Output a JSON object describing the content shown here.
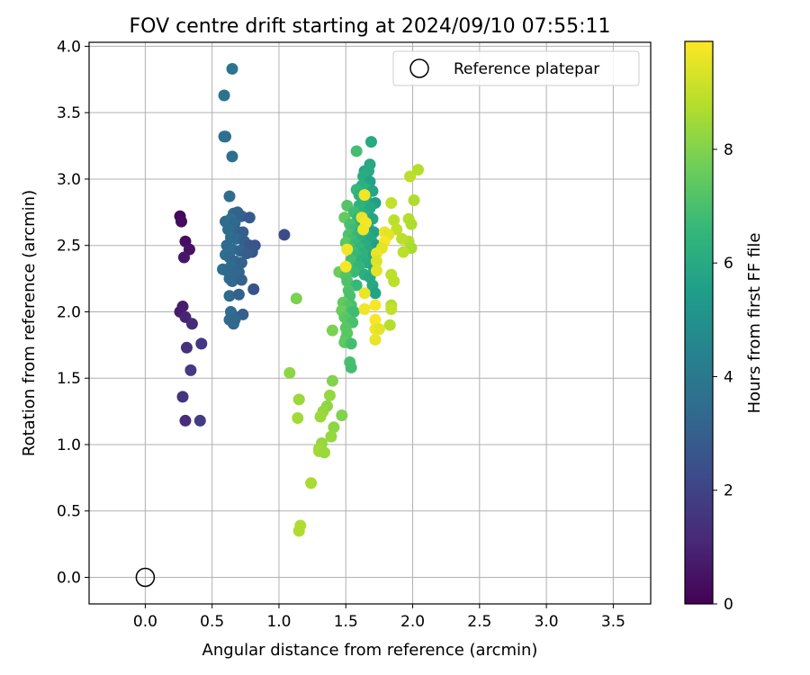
{
  "chart_data": {
    "type": "scatter",
    "title": "FOV centre drift starting at 2024/09/10 07:55:11",
    "xlabel": "Angular distance from reference (arcmin)",
    "ylabel": "Rotation from reference (arcmin)",
    "xlim": [
      -0.42,
      3.78
    ],
    "ylim": [
      -0.2,
      4.03
    ],
    "xticks": [
      0.0,
      0.5,
      1.0,
      1.5,
      2.0,
      2.5,
      3.0,
      3.5
    ],
    "yticks": [
      0.0,
      0.5,
      1.0,
      1.5,
      2.0,
      2.5,
      3.0,
      3.5,
      4.0
    ],
    "xtick_labels": [
      "0.0",
      "0.5",
      "1.0",
      "1.5",
      "2.0",
      "2.5",
      "3.0",
      "3.5"
    ],
    "ytick_labels": [
      "0.0",
      "0.5",
      "1.0",
      "1.5",
      "2.0",
      "2.5",
      "3.0",
      "3.5",
      "4.0"
    ],
    "grid": true,
    "legend": {
      "position": "upper right",
      "entries": [
        {
          "label": "Reference platepar",
          "marker": "open-circle",
          "color": "#000000"
        }
      ]
    },
    "reference_point": {
      "x": 0.0,
      "y": 0.0
    },
    "colorbar": {
      "label": "Hours from first FF file",
      "range": [
        0,
        9.9
      ],
      "ticks": [
        0,
        2,
        4,
        6,
        8
      ],
      "tick_labels": [
        "0",
        "2",
        "4",
        "6",
        "8"
      ],
      "colormap": [
        "#440154",
        "#482878",
        "#3e4989",
        "#31688e",
        "#26828e",
        "#1f9e89",
        "#35b779",
        "#6ece58",
        "#b5de2b",
        "#fde725"
      ]
    },
    "points": [
      {
        "x": 0.26,
        "y": 2.72,
        "c": 0.2
      },
      {
        "x": 0.27,
        "y": 2.68,
        "c": 0.3
      },
      {
        "x": 0.3,
        "y": 2.53,
        "c": 0.4
      },
      {
        "x": 0.33,
        "y": 2.47,
        "c": 0.5
      },
      {
        "x": 0.29,
        "y": 2.41,
        "c": 0.6
      },
      {
        "x": 0.26,
        "y": 2.0,
        "c": 0.7
      },
      {
        "x": 0.28,
        "y": 2.04,
        "c": 0.8
      },
      {
        "x": 0.3,
        "y": 1.96,
        "c": 1.0
      },
      {
        "x": 0.35,
        "y": 1.91,
        "c": 1.2
      },
      {
        "x": 0.31,
        "y": 1.73,
        "c": 1.4
      },
      {
        "x": 0.42,
        "y": 1.76,
        "c": 1.6
      },
      {
        "x": 0.34,
        "y": 1.56,
        "c": 1.7
      },
      {
        "x": 0.28,
        "y": 1.36,
        "c": 1.5
      },
      {
        "x": 0.3,
        "y": 1.18,
        "c": 1.3
      },
      {
        "x": 0.41,
        "y": 1.18,
        "c": 1.8
      },
      {
        "x": 1.04,
        "y": 2.58,
        "c": 2.3
      },
      {
        "x": 0.65,
        "y": 3.83,
        "c": 3.9
      },
      {
        "x": 0.59,
        "y": 3.63,
        "c": 3.8
      },
      {
        "x": 0.59,
        "y": 3.32,
        "c": 3.7
      },
      {
        "x": 0.6,
        "y": 3.32,
        "c": 3.7
      },
      {
        "x": 0.65,
        "y": 3.17,
        "c": 3.6
      },
      {
        "x": 0.63,
        "y": 2.87,
        "c": 3.5
      },
      {
        "x": 0.66,
        "y": 2.74,
        "c": 3.6
      },
      {
        "x": 0.69,
        "y": 2.75,
        "c": 3.2
      },
      {
        "x": 0.72,
        "y": 2.72,
        "c": 3.1
      },
      {
        "x": 0.78,
        "y": 2.71,
        "c": 2.8
      },
      {
        "x": 0.6,
        "y": 2.68,
        "c": 3.4
      },
      {
        "x": 0.64,
        "y": 2.7,
        "c": 3.6
      },
      {
        "x": 0.67,
        "y": 2.67,
        "c": 3.3
      },
      {
        "x": 0.62,
        "y": 2.62,
        "c": 3.5
      },
      {
        "x": 0.7,
        "y": 2.6,
        "c": 3.2
      },
      {
        "x": 0.73,
        "y": 2.6,
        "c": 3.0
      },
      {
        "x": 0.64,
        "y": 2.56,
        "c": 3.6
      },
      {
        "x": 0.68,
        "y": 2.55,
        "c": 3.4
      },
      {
        "x": 0.74,
        "y": 2.53,
        "c": 3.0
      },
      {
        "x": 0.61,
        "y": 2.5,
        "c": 3.4
      },
      {
        "x": 0.78,
        "y": 2.5,
        "c": 2.7
      },
      {
        "x": 0.82,
        "y": 2.5,
        "c": 2.6
      },
      {
        "x": 0.65,
        "y": 2.47,
        "c": 3.5
      },
      {
        "x": 0.71,
        "y": 2.46,
        "c": 3.2
      },
      {
        "x": 0.8,
        "y": 2.45,
        "c": 2.7
      },
      {
        "x": 0.76,
        "y": 2.44,
        "c": 2.9
      },
      {
        "x": 0.6,
        "y": 2.43,
        "c": 3.6
      },
      {
        "x": 0.63,
        "y": 2.41,
        "c": 3.4
      },
      {
        "x": 0.67,
        "y": 2.38,
        "c": 3.3
      },
      {
        "x": 0.72,
        "y": 2.37,
        "c": 3.1
      },
      {
        "x": 0.64,
        "y": 2.34,
        "c": 3.5
      },
      {
        "x": 0.58,
        "y": 2.32,
        "c": 3.6
      },
      {
        "x": 0.61,
        "y": 2.31,
        "c": 3.4
      },
      {
        "x": 0.66,
        "y": 2.31,
        "c": 3.3
      },
      {
        "x": 0.7,
        "y": 2.3,
        "c": 3.2
      },
      {
        "x": 0.68,
        "y": 2.27,
        "c": 3.3
      },
      {
        "x": 0.63,
        "y": 2.25,
        "c": 3.4
      },
      {
        "x": 0.65,
        "y": 2.23,
        "c": 3.3
      },
      {
        "x": 0.72,
        "y": 2.24,
        "c": 3.1
      },
      {
        "x": 0.81,
        "y": 2.17,
        "c": 2.6
      },
      {
        "x": 0.63,
        "y": 2.12,
        "c": 3.4
      },
      {
        "x": 0.7,
        "y": 2.13,
        "c": 3.1
      },
      {
        "x": 0.64,
        "y": 2.0,
        "c": 3.5
      },
      {
        "x": 0.66,
        "y": 1.97,
        "c": 3.4
      },
      {
        "x": 0.73,
        "y": 1.98,
        "c": 3.0
      },
      {
        "x": 0.63,
        "y": 1.94,
        "c": 3.4
      },
      {
        "x": 0.67,
        "y": 1.94,
        "c": 3.3
      },
      {
        "x": 0.66,
        "y": 1.91,
        "c": 3.3
      },
      {
        "x": 1.58,
        "y": 3.21,
        "c": 6.9
      },
      {
        "x": 1.69,
        "y": 3.28,
        "c": 6.0
      },
      {
        "x": 1.68,
        "y": 3.11,
        "c": 5.9
      },
      {
        "x": 1.64,
        "y": 3.06,
        "c": 5.8
      },
      {
        "x": 1.67,
        "y": 3.06,
        "c": 6.0
      },
      {
        "x": 1.63,
        "y": 3.02,
        "c": 6.1
      },
      {
        "x": 1.68,
        "y": 2.98,
        "c": 5.7
      },
      {
        "x": 1.62,
        "y": 2.95,
        "c": 6.2
      },
      {
        "x": 1.58,
        "y": 2.92,
        "c": 6.6
      },
      {
        "x": 1.66,
        "y": 2.92,
        "c": 6.3
      },
      {
        "x": 1.7,
        "y": 2.91,
        "c": 5.8
      },
      {
        "x": 1.6,
        "y": 2.88,
        "c": 6.4
      },
      {
        "x": 1.65,
        "y": 2.85,
        "c": 6.2
      },
      {
        "x": 1.72,
        "y": 2.82,
        "c": 5.6
      },
      {
        "x": 1.51,
        "y": 2.8,
        "c": 7.2
      },
      {
        "x": 1.6,
        "y": 2.8,
        "c": 6.4
      },
      {
        "x": 1.68,
        "y": 2.78,
        "c": 6.0
      },
      {
        "x": 1.56,
        "y": 2.75,
        "c": 6.8
      },
      {
        "x": 1.64,
        "y": 2.73,
        "c": 6.2
      },
      {
        "x": 1.49,
        "y": 2.71,
        "c": 7.5
      },
      {
        "x": 1.59,
        "y": 2.7,
        "c": 6.5
      },
      {
        "x": 1.7,
        "y": 2.7,
        "c": 5.8
      },
      {
        "x": 1.53,
        "y": 2.66,
        "c": 7.0
      },
      {
        "x": 1.62,
        "y": 2.65,
        "c": 6.3
      },
      {
        "x": 1.67,
        "y": 2.63,
        "c": 6.0
      },
      {
        "x": 1.56,
        "y": 2.62,
        "c": 6.8
      },
      {
        "x": 1.61,
        "y": 2.61,
        "c": 6.4
      },
      {
        "x": 1.71,
        "y": 2.6,
        "c": 5.7
      },
      {
        "x": 1.52,
        "y": 2.58,
        "c": 7.1
      },
      {
        "x": 1.58,
        "y": 2.57,
        "c": 6.6
      },
      {
        "x": 1.65,
        "y": 2.57,
        "c": 6.2
      },
      {
        "x": 1.54,
        "y": 2.54,
        "c": 6.9
      },
      {
        "x": 1.62,
        "y": 2.54,
        "c": 6.3
      },
      {
        "x": 1.69,
        "y": 2.54,
        "c": 5.9
      },
      {
        "x": 1.5,
        "y": 2.52,
        "c": 7.3
      },
      {
        "x": 1.57,
        "y": 2.51,
        "c": 6.7
      },
      {
        "x": 1.65,
        "y": 2.5,
        "c": 6.1
      },
      {
        "x": 1.73,
        "y": 2.5,
        "c": 5.6
      },
      {
        "x": 1.53,
        "y": 2.48,
        "c": 7.0
      },
      {
        "x": 1.6,
        "y": 2.48,
        "c": 6.5
      },
      {
        "x": 1.67,
        "y": 2.46,
        "c": 6.0
      },
      {
        "x": 1.56,
        "y": 2.45,
        "c": 6.8
      },
      {
        "x": 1.63,
        "y": 2.44,
        "c": 6.3
      },
      {
        "x": 1.58,
        "y": 2.42,
        "c": 6.6
      },
      {
        "x": 1.71,
        "y": 2.42,
        "c": 5.7
      },
      {
        "x": 1.54,
        "y": 2.39,
        "c": 6.9
      },
      {
        "x": 1.62,
        "y": 2.39,
        "c": 6.3
      },
      {
        "x": 1.66,
        "y": 2.37,
        "c": 6.1
      },
      {
        "x": 1.55,
        "y": 2.35,
        "c": 6.8
      },
      {
        "x": 1.6,
        "y": 2.34,
        "c": 6.5
      },
      {
        "x": 1.71,
        "y": 2.33,
        "c": 5.8
      },
      {
        "x": 1.45,
        "y": 2.3,
        "c": 7.6
      },
      {
        "x": 1.56,
        "y": 2.3,
        "c": 6.7
      },
      {
        "x": 1.64,
        "y": 2.28,
        "c": 6.2
      },
      {
        "x": 1.5,
        "y": 2.27,
        "c": 7.2
      },
      {
        "x": 1.68,
        "y": 2.26,
        "c": 6.0
      },
      {
        "x": 1.51,
        "y": 2.23,
        "c": 7.1
      },
      {
        "x": 1.58,
        "y": 2.2,
        "c": 6.6
      },
      {
        "x": 1.7,
        "y": 2.2,
        "c": 5.9
      },
      {
        "x": 1.52,
        "y": 2.16,
        "c": 7.1
      },
      {
        "x": 1.72,
        "y": 2.14,
        "c": 5.7
      },
      {
        "x": 1.53,
        "y": 2.12,
        "c": 7.0
      },
      {
        "x": 1.48,
        "y": 2.07,
        "c": 7.5
      },
      {
        "x": 1.54,
        "y": 2.05,
        "c": 7.0
      },
      {
        "x": 1.51,
        "y": 2.04,
        "c": 7.2
      },
      {
        "x": 1.47,
        "y": 2.01,
        "c": 7.6
      },
      {
        "x": 1.54,
        "y": 2.0,
        "c": 7.0
      },
      {
        "x": 1.56,
        "y": 2.0,
        "c": 6.8
      },
      {
        "x": 1.49,
        "y": 1.96,
        "c": 7.4
      },
      {
        "x": 1.51,
        "y": 1.94,
        "c": 7.3
      },
      {
        "x": 1.55,
        "y": 1.92,
        "c": 7.0
      },
      {
        "x": 1.5,
        "y": 1.88,
        "c": 7.3
      },
      {
        "x": 1.4,
        "y": 1.86,
        "c": 7.9
      },
      {
        "x": 1.51,
        "y": 1.84,
        "c": 7.3
      },
      {
        "x": 1.5,
        "y": 1.8,
        "c": 7.3
      },
      {
        "x": 1.49,
        "y": 1.77,
        "c": 7.4
      },
      {
        "x": 1.54,
        "y": 1.76,
        "c": 6.9
      },
      {
        "x": 1.53,
        "y": 1.62,
        "c": 7.0
      },
      {
        "x": 1.54,
        "y": 1.58,
        "c": 6.9
      },
      {
        "x": 1.13,
        "y": 2.1,
        "c": 7.9
      },
      {
        "x": 1.08,
        "y": 1.54,
        "c": 8.2
      },
      {
        "x": 1.4,
        "y": 1.48,
        "c": 8.0
      },
      {
        "x": 1.38,
        "y": 1.37,
        "c": 8.3
      },
      {
        "x": 1.15,
        "y": 1.34,
        "c": 8.4
      },
      {
        "x": 1.36,
        "y": 1.29,
        "c": 8.2
      },
      {
        "x": 1.33,
        "y": 1.25,
        "c": 8.3
      },
      {
        "x": 1.31,
        "y": 1.21,
        "c": 8.4
      },
      {
        "x": 1.47,
        "y": 1.22,
        "c": 8.0
      },
      {
        "x": 1.14,
        "y": 1.2,
        "c": 8.5
      },
      {
        "x": 1.41,
        "y": 1.13,
        "c": 8.2
      },
      {
        "x": 1.39,
        "y": 1.06,
        "c": 8.3
      },
      {
        "x": 1.32,
        "y": 1.01,
        "c": 8.3
      },
      {
        "x": 1.3,
        "y": 0.97,
        "c": 8.4
      },
      {
        "x": 1.3,
        "y": 0.95,
        "c": 8.5
      },
      {
        "x": 1.34,
        "y": 0.94,
        "c": 8.4
      },
      {
        "x": 1.24,
        "y": 0.71,
        "c": 8.6
      },
      {
        "x": 1.16,
        "y": 0.39,
        "c": 8.7
      },
      {
        "x": 1.15,
        "y": 0.35,
        "c": 8.7
      },
      {
        "x": 1.98,
        "y": 3.02,
        "c": 8.9
      },
      {
        "x": 2.04,
        "y": 3.07,
        "c": 8.8
      },
      {
        "x": 2.01,
        "y": 2.84,
        "c": 8.7
      },
      {
        "x": 1.84,
        "y": 2.82,
        "c": 9.0
      },
      {
        "x": 1.97,
        "y": 2.7,
        "c": 8.8
      },
      {
        "x": 1.86,
        "y": 2.69,
        "c": 8.9
      },
      {
        "x": 1.99,
        "y": 2.66,
        "c": 8.7
      },
      {
        "x": 1.88,
        "y": 2.62,
        "c": 9.0
      },
      {
        "x": 1.97,
        "y": 2.53,
        "c": 8.8
      },
      {
        "x": 1.92,
        "y": 2.55,
        "c": 8.9
      },
      {
        "x": 1.99,
        "y": 2.48,
        "c": 8.6
      },
      {
        "x": 1.93,
        "y": 2.45,
        "c": 8.9
      },
      {
        "x": 1.84,
        "y": 2.28,
        "c": 8.9
      },
      {
        "x": 1.86,
        "y": 2.23,
        "c": 8.9
      },
      {
        "x": 1.84,
        "y": 2.05,
        "c": 8.8
      },
      {
        "x": 1.84,
        "y": 2.02,
        "c": 9.0
      },
      {
        "x": 1.83,
        "y": 1.9,
        "c": 8.8
      },
      {
        "x": 1.64,
        "y": 2.88,
        "c": 9.7
      },
      {
        "x": 1.62,
        "y": 2.71,
        "c": 9.6
      },
      {
        "x": 1.65,
        "y": 2.67,
        "c": 9.8
      },
      {
        "x": 1.63,
        "y": 2.62,
        "c": 9.7
      },
      {
        "x": 1.79,
        "y": 2.6,
        "c": 9.6
      },
      {
        "x": 1.82,
        "y": 2.58,
        "c": 9.5
      },
      {
        "x": 1.79,
        "y": 2.53,
        "c": 9.8
      },
      {
        "x": 1.77,
        "y": 2.48,
        "c": 9.5
      },
      {
        "x": 1.51,
        "y": 2.47,
        "c": 9.7
      },
      {
        "x": 1.73,
        "y": 2.44,
        "c": 9.6
      },
      {
        "x": 1.73,
        "y": 2.38,
        "c": 9.4
      },
      {
        "x": 1.5,
        "y": 2.34,
        "c": 9.8
      },
      {
        "x": 1.73,
        "y": 2.31,
        "c": 9.5
      },
      {
        "x": 1.64,
        "y": 2.14,
        "c": 9.6
      },
      {
        "x": 1.72,
        "y": 2.05,
        "c": 9.8
      },
      {
        "x": 1.64,
        "y": 2.02,
        "c": 9.7
      },
      {
        "x": 1.72,
        "y": 1.94,
        "c": 9.8
      },
      {
        "x": 1.72,
        "y": 1.87,
        "c": 9.7
      },
      {
        "x": 1.75,
        "y": 1.87,
        "c": 9.5
      },
      {
        "x": 1.72,
        "y": 1.79,
        "c": 9.6
      }
    ]
  }
}
